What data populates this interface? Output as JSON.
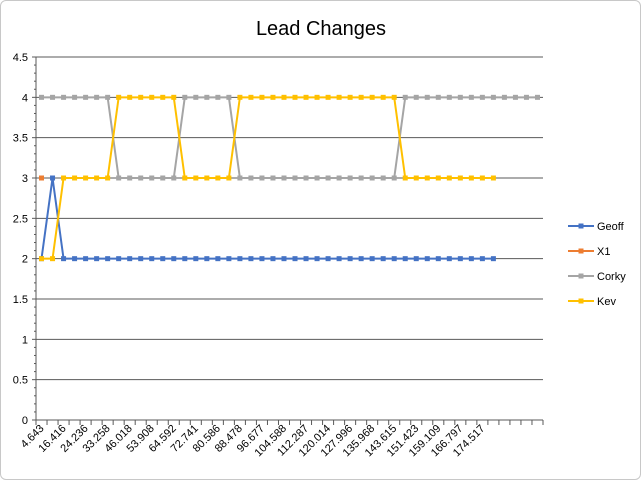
{
  "chart_data": {
    "type": "line",
    "title": "Lead Changes",
    "xlabel": "",
    "ylabel": "",
    "ylim": [
      0,
      4.5
    ],
    "ytick_step": 0.5,
    "grid": "horizontal",
    "legend_position": "right",
    "x_tick_labels": [
      "4.643",
      "16.416",
      "24.236",
      "33.258",
      "46.018",
      "53.908",
      "64.592",
      "72.741",
      "80.586",
      "88.478",
      "96.677",
      "104.588",
      "112.287",
      "120.014",
      "127.996",
      "135.968",
      "143.615",
      "151.423",
      "159.109",
      "166.797",
      "174.517"
    ],
    "category_count": 46,
    "series": [
      {
        "name": "Geoff",
        "color": "#4472C4",
        "values": [
          2,
          3,
          2,
          2,
          2,
          2,
          2,
          2,
          2,
          2,
          2,
          2,
          2,
          2,
          2,
          2,
          2,
          2,
          2,
          2,
          2,
          2,
          2,
          2,
          2,
          2,
          2,
          2,
          2,
          2,
          2,
          2,
          2,
          2,
          2,
          2,
          2,
          2,
          2,
          2,
          2,
          2
        ]
      },
      {
        "name": "X1",
        "color": "#ED7D31",
        "values": [
          3
        ]
      },
      {
        "name": "Corky",
        "color": "#A5A5A5",
        "values": [
          4,
          4,
          4,
          4,
          4,
          4,
          4,
          3,
          3,
          3,
          3,
          3,
          3,
          4,
          4,
          4,
          4,
          4,
          3,
          3,
          3,
          3,
          3,
          3,
          3,
          3,
          3,
          3,
          3,
          3,
          3,
          3,
          3,
          4,
          4,
          4,
          4,
          4,
          4,
          4,
          4,
          4,
          4,
          4,
          4,
          4
        ]
      },
      {
        "name": "Kev",
        "color": "#FFC000",
        "values": [
          2,
          2,
          3,
          3,
          3,
          3,
          3,
          4,
          4,
          4,
          4,
          4,
          4,
          3,
          3,
          3,
          3,
          3,
          4,
          4,
          4,
          4,
          4,
          4,
          4,
          4,
          4,
          4,
          4,
          4,
          4,
          4,
          4,
          3,
          3,
          3,
          3,
          3,
          3,
          3,
          3,
          3
        ]
      }
    ]
  }
}
